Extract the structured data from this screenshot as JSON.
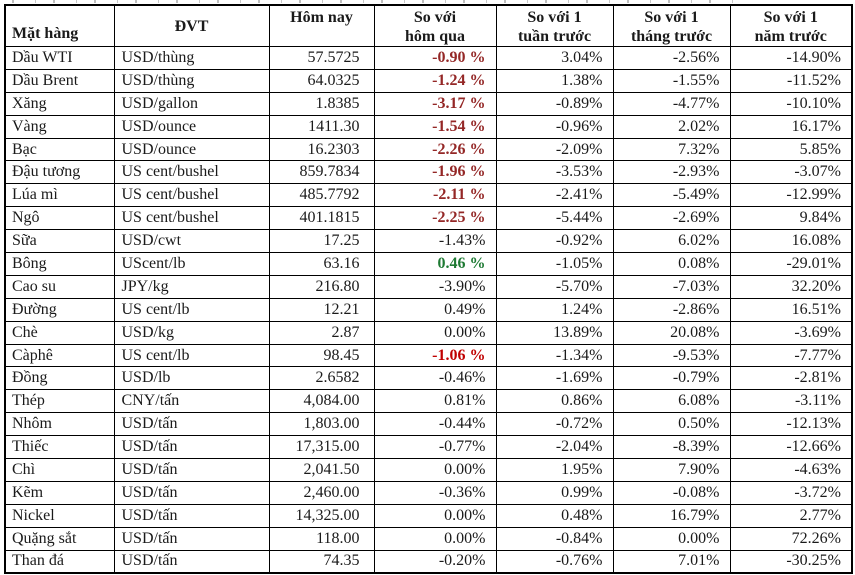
{
  "styles": {
    "negative_vs_yesterday_color": "#942726",
    "negative_vs_yesterday_bright_color": "#c00000",
    "positive_vs_yesterday_color": "#1e7a33",
    "text_color": "#1a1a1a",
    "border_color": "#000000"
  },
  "table": {
    "headers": [
      {
        "key": "item",
        "lines": [
          "Mặt hàng"
        ]
      },
      {
        "key": "unit",
        "lines": [
          "ĐVT"
        ]
      },
      {
        "key": "today",
        "lines": [
          "Hôm nay"
        ]
      },
      {
        "key": "vs-yesterday",
        "lines": [
          "So với",
          "hôm qua"
        ]
      },
      {
        "key": "vs-week",
        "lines": [
          "So với 1",
          "tuần trước"
        ]
      },
      {
        "key": "vs-month",
        "lines": [
          "So với 1",
          "tháng trước"
        ]
      },
      {
        "key": "vs-year",
        "lines": [
          "So với 1",
          "năm trước"
        ]
      }
    ],
    "rows": [
      {
        "item": "Dầu WTI",
        "unit": "USD/thùng",
        "today": "57.5725",
        "vs_yesterday": {
          "text": "-0.90 %",
          "style": "neg"
        },
        "vs_week": "3.04%",
        "vs_month": "-2.56%",
        "vs_year": "-14.90%"
      },
      {
        "item": "Dầu Brent",
        "unit": "USD/thùng",
        "today": "64.0325",
        "vs_yesterday": {
          "text": "-1.24 %",
          "style": "neg"
        },
        "vs_week": "1.38%",
        "vs_month": "-1.55%",
        "vs_year": "-11.52%"
      },
      {
        "item": "Xăng",
        "unit": "USD/gallon",
        "today": "1.8385",
        "vs_yesterday": {
          "text": "-3.17 %",
          "style": "neg"
        },
        "vs_week": "-0.89%",
        "vs_month": "-4.77%",
        "vs_year": "-10.10%"
      },
      {
        "item": "Vàng",
        "unit": "USD/ounce",
        "today": "1411.30",
        "vs_yesterday": {
          "text": "-1.54 %",
          "style": "neg"
        },
        "vs_week": "-0.96%",
        "vs_month": "2.02%",
        "vs_year": "16.17%"
      },
      {
        "item": "Bạc",
        "unit": "USD/ounce",
        "today": "16.2303",
        "vs_yesterday": {
          "text": "-2.26 %",
          "style": "neg"
        },
        "vs_week": "-2.09%",
        "vs_month": "7.32%",
        "vs_year": "5.85%"
      },
      {
        "item": "Đậu tương",
        "unit": "US cent/bushel",
        "today": "859.7834",
        "vs_yesterday": {
          "text": "-1.96 %",
          "style": "neg"
        },
        "vs_week": "-3.53%",
        "vs_month": "-2.93%",
        "vs_year": "-3.07%"
      },
      {
        "item": "Lúa mì",
        "unit": "US cent/bushel",
        "today": "485.7792",
        "vs_yesterday": {
          "text": "-2.11 %",
          "style": "neg"
        },
        "vs_week": "-2.41%",
        "vs_month": "-5.49%",
        "vs_year": "-12.99%"
      },
      {
        "item": "Ngô",
        "unit": "US cent/bushel",
        "today": "401.1815",
        "vs_yesterday": {
          "text": "-2.25 %",
          "style": "neg"
        },
        "vs_week": "-5.44%",
        "vs_month": "-2.69%",
        "vs_year": "9.84%"
      },
      {
        "item": "Sữa",
        "unit": "USD/cwt",
        "today": "17.25",
        "vs_yesterday": {
          "text": "-1.43%",
          "style": ""
        },
        "vs_week": "-0.92%",
        "vs_month": "6.02%",
        "vs_year": "16.08%"
      },
      {
        "item": "Bông",
        "unit": "UScent/lb",
        "today": "63.16",
        "vs_yesterday": {
          "text": "0.46 %",
          "style": "pos"
        },
        "vs_week": "-1.05%",
        "vs_month": "0.08%",
        "vs_year": "-29.01%"
      },
      {
        "item": "Cao su",
        "unit": "JPY/kg",
        "today": "216.80",
        "vs_yesterday": {
          "text": "-3.90%",
          "style": ""
        },
        "vs_week": "-5.70%",
        "vs_month": "-7.03%",
        "vs_year": "32.20%"
      },
      {
        "item": "Đường",
        "unit": "US cent/lb",
        "today": "12.21",
        "vs_yesterday": {
          "text": "0.49%",
          "style": ""
        },
        "vs_week": "1.24%",
        "vs_month": "-2.86%",
        "vs_year": "16.51%"
      },
      {
        "item": "Chè",
        "unit": "USD/kg",
        "today": "2.87",
        "vs_yesterday": {
          "text": "0.00%",
          "style": ""
        },
        "vs_week": "13.89%",
        "vs_month": "20.08%",
        "vs_year": "-3.69%"
      },
      {
        "item": "Càphê",
        "unit": "US cent/lb",
        "today": "98.45",
        "vs_yesterday": {
          "text": "-1.06 %",
          "style": "neg-bright"
        },
        "vs_week": "-1.34%",
        "vs_month": "-9.53%",
        "vs_year": "-7.77%"
      },
      {
        "item": "Đồng",
        "unit": "USD/lb",
        "today": "2.6582",
        "vs_yesterday": {
          "text": "-0.46%",
          "style": ""
        },
        "vs_week": "-1.69%",
        "vs_month": "-0.79%",
        "vs_year": "-2.81%"
      },
      {
        "item": "Thép",
        "unit": "CNY/tấn",
        "today": "4,084.00",
        "vs_yesterday": {
          "text": "0.81%",
          "style": ""
        },
        "vs_week": "0.86%",
        "vs_month": "6.08%",
        "vs_year": "-3.11%"
      },
      {
        "item": "Nhôm",
        "unit": "USD/tấn",
        "today": "1,803.00",
        "vs_yesterday": {
          "text": "-0.44%",
          "style": ""
        },
        "vs_week": "-0.72%",
        "vs_month": "0.50%",
        "vs_year": "-12.13%"
      },
      {
        "item": "Thiếc",
        "unit": "USD/tấn",
        "today": "17,315.00",
        "vs_yesterday": {
          "text": "-0.77%",
          "style": ""
        },
        "vs_week": "-2.04%",
        "vs_month": "-8.39%",
        "vs_year": "-12.66%"
      },
      {
        "item": "Chì",
        "unit": "USD/tấn",
        "today": "2,041.50",
        "vs_yesterday": {
          "text": "0.00%",
          "style": ""
        },
        "vs_week": "1.95%",
        "vs_month": "7.90%",
        "vs_year": "-4.63%"
      },
      {
        "item": "Kẽm",
        "unit": "USD/tấn",
        "today": "2,460.00",
        "vs_yesterday": {
          "text": "-0.36%",
          "style": ""
        },
        "vs_week": "0.99%",
        "vs_month": "-0.08%",
        "vs_year": "-3.72%"
      },
      {
        "item": "Nickel",
        "unit": "USD/tấn",
        "today": "14,325.00",
        "vs_yesterday": {
          "text": "0.00%",
          "style": ""
        },
        "vs_week": "0.48%",
        "vs_month": "16.79%",
        "vs_year": "2.77%"
      },
      {
        "item": "Quặng sắt",
        "unit": "USD/tấn",
        "today": "118.00",
        "vs_yesterday": {
          "text": "0.00%",
          "style": ""
        },
        "vs_week": "-0.84%",
        "vs_month": "0.00%",
        "vs_year": "72.26%"
      },
      {
        "item": "Than đá",
        "unit": "USD/tấn",
        "today": "74.35",
        "vs_yesterday": {
          "text": "-0.20%",
          "style": ""
        },
        "vs_week": "-0.76%",
        "vs_month": "7.01%",
        "vs_year": "-30.25%"
      }
    ]
  },
  "chart_data": {
    "type": "table",
    "columns": [
      "Mặt hàng",
      "ĐVT",
      "Hôm nay",
      "So với hôm qua",
      "So với 1 tuần trước",
      "So với 1 tháng trước",
      "So với 1 năm trước"
    ],
    "rows": [
      [
        "Dầu WTI",
        "USD/thùng",
        "57.5725",
        "-0.90 %",
        "3.04%",
        "-2.56%",
        "-14.90%"
      ],
      [
        "Dầu Brent",
        "USD/thùng",
        "64.0325",
        "-1.24 %",
        "1.38%",
        "-1.55%",
        "-11.52%"
      ],
      [
        "Xăng",
        "USD/gallon",
        "1.8385",
        "-3.17 %",
        "-0.89%",
        "-4.77%",
        "-10.10%"
      ],
      [
        "Vàng",
        "USD/ounce",
        "1411.30",
        "-1.54 %",
        "-0.96%",
        "2.02%",
        "16.17%"
      ],
      [
        "Bạc",
        "USD/ounce",
        "16.2303",
        "-2.26 %",
        "-2.09%",
        "7.32%",
        "5.85%"
      ],
      [
        "Đậu tương",
        "US cent/bushel",
        "859.7834",
        "-1.96 %",
        "-3.53%",
        "-2.93%",
        "-3.07%"
      ],
      [
        "Lúa mì",
        "US cent/bushel",
        "485.7792",
        "-2.11 %",
        "-2.41%",
        "-5.49%",
        "-12.99%"
      ],
      [
        "Ngô",
        "US cent/bushel",
        "401.1815",
        "-2.25 %",
        "-5.44%",
        "-2.69%",
        "9.84%"
      ],
      [
        "Sữa",
        "USD/cwt",
        "17.25",
        "-1.43%",
        "-0.92%",
        "6.02%",
        "16.08%"
      ],
      [
        "Bông",
        "UScent/lb",
        "63.16",
        "0.46 %",
        "-1.05%",
        "0.08%",
        "-29.01%"
      ],
      [
        "Cao su",
        "JPY/kg",
        "216.80",
        "-3.90%",
        "-5.70%",
        "-7.03%",
        "32.20%"
      ],
      [
        "Đường",
        "US cent/lb",
        "12.21",
        "0.49%",
        "1.24%",
        "-2.86%",
        "16.51%"
      ],
      [
        "Chè",
        "USD/kg",
        "2.87",
        "0.00%",
        "13.89%",
        "20.08%",
        "-3.69%"
      ],
      [
        "Càphê",
        "US cent/lb",
        "98.45",
        "-1.06 %",
        "-1.34%",
        "-9.53%",
        "-7.77%"
      ],
      [
        "Đồng",
        "USD/lb",
        "2.6582",
        "-0.46%",
        "-1.69%",
        "-0.79%",
        "-2.81%"
      ],
      [
        "Thép",
        "CNY/tấn",
        "4,084.00",
        "0.81%",
        "0.86%",
        "6.08%",
        "-3.11%"
      ],
      [
        "Nhôm",
        "USD/tấn",
        "1,803.00",
        "-0.44%",
        "-0.72%",
        "0.50%",
        "-12.13%"
      ],
      [
        "Thiếc",
        "USD/tấn",
        "17,315.00",
        "-0.77%",
        "-2.04%",
        "-8.39%",
        "-12.66%"
      ],
      [
        "Chì",
        "USD/tấn",
        "2,041.50",
        "0.00%",
        "1.95%",
        "7.90%",
        "-4.63%"
      ],
      [
        "Kẽm",
        "USD/tấn",
        "2,460.00",
        "-0.36%",
        "0.99%",
        "-0.08%",
        "-3.72%"
      ],
      [
        "Nickel",
        "USD/tấn",
        "14,325.00",
        "0.00%",
        "0.48%",
        "16.79%",
        "2.77%"
      ],
      [
        "Quặng sắt",
        "USD/tấn",
        "118.00",
        "0.00%",
        "-0.84%",
        "0.00%",
        "72.26%"
      ],
      [
        "Than đá",
        "USD/tấn",
        "74.35",
        "-0.20%",
        "-0.76%",
        "7.01%",
        "-30.25%"
      ]
    ]
  }
}
